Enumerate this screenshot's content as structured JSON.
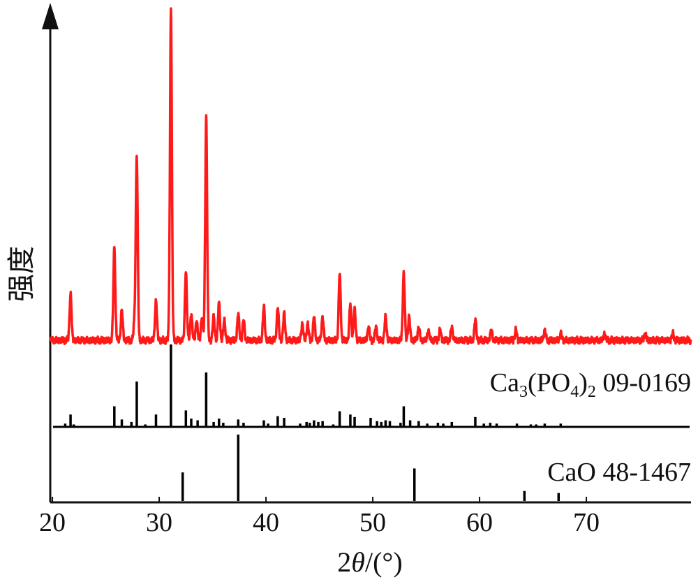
{
  "chart_data": {
    "type": "line",
    "title": "",
    "xlabel_parts": [
      "2",
      "θ",
      "/(°)"
    ],
    "ylabel": "强度",
    "xlim": [
      19.8,
      79.8
    ],
    "x_ticks": [
      20,
      30,
      40,
      50,
      60,
      70
    ],
    "x_tick_labels": [
      "20",
      "30",
      "40",
      "50",
      "60",
      "70"
    ],
    "grid": false,
    "colors": {
      "measured": "#ff1a1a",
      "reference": "#000000",
      "axis": "#111111"
    },
    "measured_pattern": {
      "color": "#ff1a1a",
      "baseline": 3,
      "peaks": [
        {
          "x": 21.7,
          "y": 14
        },
        {
          "x": 25.8,
          "y": 28
        },
        {
          "x": 26.5,
          "y": 9
        },
        {
          "x": 27.7,
          "y": 6
        },
        {
          "x": 27.9,
          "y": 55
        },
        {
          "x": 29.7,
          "y": 12
        },
        {
          "x": 31.1,
          "y": 100
        },
        {
          "x": 32.5,
          "y": 21
        },
        {
          "x": 33.0,
          "y": 8
        },
        {
          "x": 33.5,
          "y": 6
        },
        {
          "x": 34.0,
          "y": 7
        },
        {
          "x": 34.4,
          "y": 67
        },
        {
          "x": 35.1,
          "y": 7
        },
        {
          "x": 35.6,
          "y": 11
        },
        {
          "x": 36.1,
          "y": 6
        },
        {
          "x": 37.4,
          "y": 8
        },
        {
          "x": 37.9,
          "y": 6
        },
        {
          "x": 39.8,
          "y": 10
        },
        {
          "x": 41.1,
          "y": 10
        },
        {
          "x": 41.7,
          "y": 8
        },
        {
          "x": 43.4,
          "y": 5
        },
        {
          "x": 43.9,
          "y": 5
        },
        {
          "x": 44.5,
          "y": 7
        },
        {
          "x": 45.3,
          "y": 7
        },
        {
          "x": 46.9,
          "y": 20
        },
        {
          "x": 47.9,
          "y": 11
        },
        {
          "x": 48.3,
          "y": 9
        },
        {
          "x": 49.6,
          "y": 4
        },
        {
          "x": 50.3,
          "y": 4
        },
        {
          "x": 51.2,
          "y": 7
        },
        {
          "x": 52.9,
          "y": 20
        },
        {
          "x": 53.4,
          "y": 7
        },
        {
          "x": 54.3,
          "y": 4
        },
        {
          "x": 55.2,
          "y": 3
        },
        {
          "x": 56.3,
          "y": 3
        },
        {
          "x": 57.4,
          "y": 4
        },
        {
          "x": 59.6,
          "y": 6
        },
        {
          "x": 61.1,
          "y": 3
        },
        {
          "x": 63.4,
          "y": 3
        },
        {
          "x": 66.1,
          "y": 3
        },
        {
          "x": 67.6,
          "y": 2
        },
        {
          "x": 71.7,
          "y": 2
        },
        {
          "x": 75.5,
          "y": 2
        },
        {
          "x": 78.1,
          "y": 2
        }
      ]
    },
    "references": [
      {
        "name": "Ca",
        "label_parts": [
          "Ca",
          "3",
          "(PO",
          "4",
          ")",
          "2",
          " 09-0169"
        ],
        "sticks": [
          {
            "x": 21.2,
            "y": 4
          },
          {
            "x": 21.7,
            "y": 15
          },
          {
            "x": 22.0,
            "y": 3
          },
          {
            "x": 25.8,
            "y": 25
          },
          {
            "x": 26.5,
            "y": 9
          },
          {
            "x": 27.4,
            "y": 6
          },
          {
            "x": 27.9,
            "y": 55
          },
          {
            "x": 28.7,
            "y": 3
          },
          {
            "x": 29.7,
            "y": 15
          },
          {
            "x": 31.1,
            "y": 100
          },
          {
            "x": 32.5,
            "y": 20
          },
          {
            "x": 33.0,
            "y": 10
          },
          {
            "x": 33.6,
            "y": 8
          },
          {
            "x": 34.4,
            "y": 66
          },
          {
            "x": 35.1,
            "y": 6
          },
          {
            "x": 35.6,
            "y": 10
          },
          {
            "x": 36.0,
            "y": 5
          },
          {
            "x": 37.4,
            "y": 9
          },
          {
            "x": 37.9,
            "y": 5
          },
          {
            "x": 39.8,
            "y": 8
          },
          {
            "x": 40.2,
            "y": 4
          },
          {
            "x": 41.1,
            "y": 13
          },
          {
            "x": 41.7,
            "y": 11
          },
          {
            "x": 43.2,
            "y": 4
          },
          {
            "x": 43.8,
            "y": 6
          },
          {
            "x": 44.1,
            "y": 5
          },
          {
            "x": 44.5,
            "y": 8
          },
          {
            "x": 44.9,
            "y": 6
          },
          {
            "x": 45.3,
            "y": 7
          },
          {
            "x": 46.3,
            "y": 3
          },
          {
            "x": 46.9,
            "y": 19
          },
          {
            "x": 47.9,
            "y": 15
          },
          {
            "x": 48.3,
            "y": 12
          },
          {
            "x": 49.8,
            "y": 11
          },
          {
            "x": 50.4,
            "y": 7
          },
          {
            "x": 50.8,
            "y": 6
          },
          {
            "x": 51.2,
            "y": 8
          },
          {
            "x": 51.6,
            "y": 7
          },
          {
            "x": 52.6,
            "y": 5
          },
          {
            "x": 52.9,
            "y": 25
          },
          {
            "x": 53.5,
            "y": 8
          },
          {
            "x": 54.3,
            "y": 7
          },
          {
            "x": 55.1,
            "y": 4
          },
          {
            "x": 56.1,
            "y": 5
          },
          {
            "x": 56.6,
            "y": 4
          },
          {
            "x": 57.4,
            "y": 6
          },
          {
            "x": 59.6,
            "y": 12
          },
          {
            "x": 60.4,
            "y": 4
          },
          {
            "x": 61.0,
            "y": 5
          },
          {
            "x": 61.6,
            "y": 4
          },
          {
            "x": 63.5,
            "y": 4
          },
          {
            "x": 64.8,
            "y": 3
          },
          {
            "x": 65.3,
            "y": 3
          },
          {
            "x": 66.1,
            "y": 4
          },
          {
            "x": 67.6,
            "y": 4
          }
        ]
      },
      {
        "name": "CaO",
        "label_parts": [
          "CaO 48-1467"
        ],
        "sticks": [
          {
            "x": 32.2,
            "y": 43
          },
          {
            "x": 37.4,
            "y": 100
          },
          {
            "x": 53.9,
            "y": 49
          },
          {
            "x": 64.2,
            "y": 15
          },
          {
            "x": 67.4,
            "y": 12
          }
        ]
      }
    ]
  }
}
